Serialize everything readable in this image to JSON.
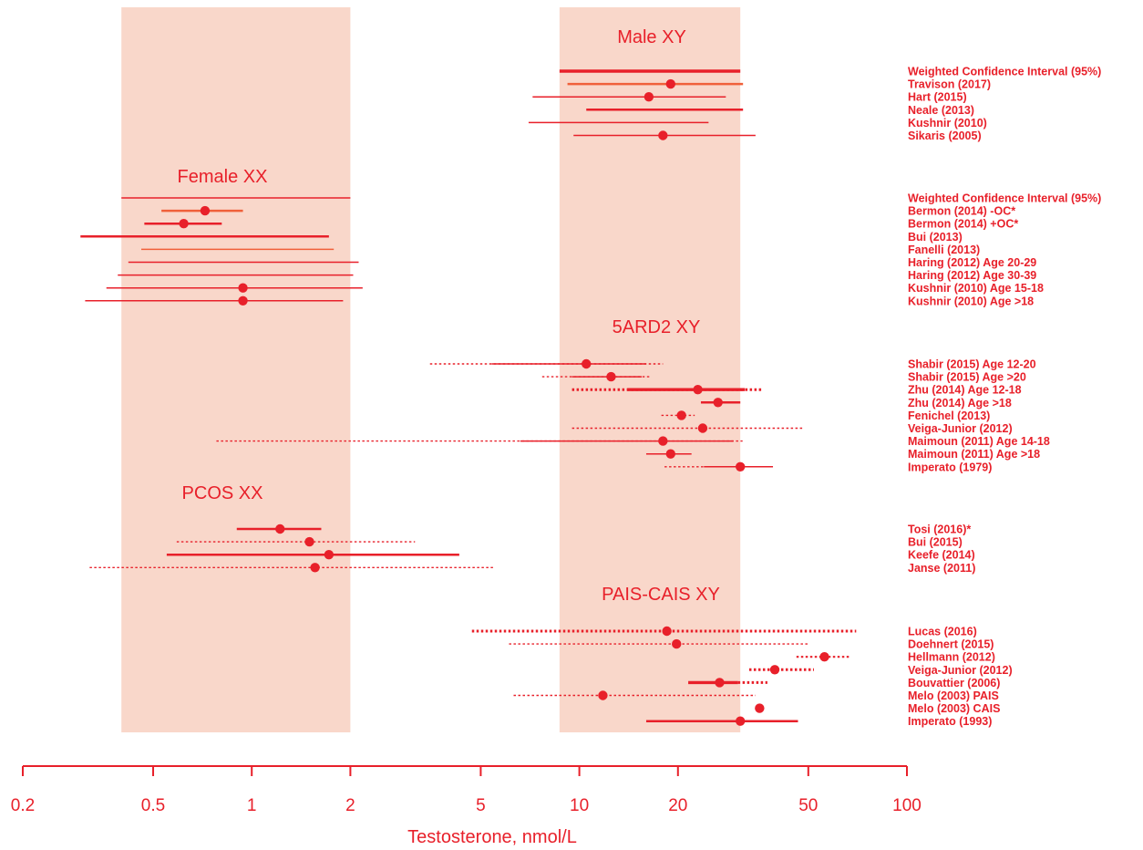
{
  "colors": {
    "accent": "#e8202a",
    "ref_band": "#f9d7ca",
    "light_line": "#f0603a"
  },
  "chart_data": {
    "type": "forest",
    "xlabel": "Testosterone, nmol/L",
    "x_scale": "log",
    "xlim": [
      0.2,
      100
    ],
    "x_ticks": [
      0.2,
      0.5,
      1,
      2,
      5,
      10,
      20,
      50,
      100
    ],
    "x_tick_labels": [
      "0.2",
      "0.5",
      "1",
      "2",
      "5",
      "10",
      "20",
      "50",
      "100"
    ],
    "reference_bands": [
      {
        "group": "Female XX",
        "x_min": 0.4,
        "x_max": 2.0
      },
      {
        "group": "Male XY",
        "x_min": 8.7,
        "x_max": 31
      }
    ],
    "groups": [
      {
        "label": "Male XY",
        "rows": [
          {
            "label": "Weighted Confidence Interval (95%)",
            "ci": [
              8.7,
              31
            ],
            "style": "bold",
            "color": "accent"
          },
          {
            "label": "Travison (2017)",
            "point": 19.0,
            "ci": [
              9.2,
              31.6
            ],
            "style": "medium",
            "color": "light"
          },
          {
            "label": "Hart (2015)",
            "point": 16.3,
            "ci": [
              7.2,
              28.0
            ],
            "style": "thin",
            "color": "accent"
          },
          {
            "label": "Neale (2013)",
            "ci": [
              10.5,
              31.6
            ],
            "style": "medium",
            "color": "accent"
          },
          {
            "label": "Kushnir (2010)",
            "ci": [
              7.0,
              24.8
            ],
            "style": "thin",
            "color": "accent"
          },
          {
            "label": "Sikaris (2005)",
            "point": 18.0,
            "ci": [
              9.6,
              34.5
            ],
            "style": "thin",
            "color": "accent"
          }
        ]
      },
      {
        "label": "Female XX",
        "rows": [
          {
            "label": "Weighted Confidence Interval (95%)",
            "ci": [
              0.4,
              2.0
            ],
            "style": "thin",
            "color": "accent"
          },
          {
            "label": "Bermon (2014) -OC*",
            "point": 0.72,
            "ci": [
              0.53,
              0.94
            ],
            "style": "medium",
            "color": "light"
          },
          {
            "label": "Bermon (2014) +OC*",
            "point": 0.62,
            "ci": [
              0.47,
              0.81
            ],
            "style": "medium",
            "color": "accent"
          },
          {
            "label": "Bui (2013)",
            "ci": [
              0.3,
              1.72
            ],
            "style": "medium",
            "color": "accent"
          },
          {
            "label": "Fanelli (2013)",
            "ci": [
              0.46,
              1.78
            ],
            "style": "thin",
            "color": "light"
          },
          {
            "label": "Haring (2012) Age 20-29",
            "ci": [
              0.42,
              2.12
            ],
            "style": "thin",
            "color": "accent"
          },
          {
            "label": "Haring (2012) Age 30-39",
            "ci": [
              0.39,
              2.04
            ],
            "style": "thin",
            "color": "accent"
          },
          {
            "label": "Kushnir (2010) Age 15-18",
            "point": 0.94,
            "ci": [
              0.36,
              2.18
            ],
            "style": "thin",
            "color": "accent"
          },
          {
            "label": "Kushnir (2010) Age >18",
            "point": 0.94,
            "ci": [
              0.31,
              1.9
            ],
            "style": "thin",
            "color": "accent"
          }
        ]
      },
      {
        "label": "5ARD2 XY",
        "rows": [
          {
            "label": "Shabir (2015) Age 12-20",
            "point": 10.5,
            "ci": [
              5.4,
              16.0
            ],
            "dotted": [
              3.5,
              18.0
            ],
            "style": "thin",
            "color": "accent"
          },
          {
            "label": "Shabir (2015) Age >20",
            "point": 12.5,
            "ci": [
              9.5,
              15.5
            ],
            "dotted": [
              7.7,
              16.5
            ],
            "style": "thin",
            "color": "accent"
          },
          {
            "label": "Zhu (2014) Age 12-18",
            "point": 23.0,
            "ci": [
              14.0,
              32.0
            ],
            "dotted": [
              9.5,
              36.0
            ],
            "style": "bold",
            "color": "accent"
          },
          {
            "label": "Zhu (2014) Age >18",
            "point": 26.5,
            "ci": [
              23.5,
              31.0
            ],
            "style": "medium",
            "color": "accent"
          },
          {
            "label": "Fenichel (2013)",
            "point": 20.5,
            "dotted": [
              17.8,
              22.5
            ],
            "style": "thin",
            "color": "accent"
          },
          {
            "label": "Veiga-Junior (2012)",
            "point": 23.8,
            "dotted": [
              9.5,
              48.0
            ],
            "style": "thin",
            "color": "accent"
          },
          {
            "label": "Maimoun (2011) Age 14-18",
            "point": 18.0,
            "ci": [
              6.6,
              29.5
            ],
            "dotted": [
              0.78,
              31.5
            ],
            "style": "thin",
            "color": "accent"
          },
          {
            "label": "Maimoun (2011) Age >18",
            "point": 19.0,
            "ci": [
              16.0,
              22.0
            ],
            "style": "thin",
            "color": "accent"
          },
          {
            "label": "Imperato (1979)",
            "point": 31.0,
            "ci": [
              24.0,
              39.0
            ],
            "dotted": [
              18.2,
              24.0
            ],
            "style": "thin",
            "color": "accent"
          }
        ]
      },
      {
        "label": "PCOS XX",
        "rows": [
          {
            "label": "Tosi (2016)*",
            "point": 1.22,
            "ci": [
              0.9,
              1.63
            ],
            "style": "medium",
            "color": "accent"
          },
          {
            "label": "Bui (2015)",
            "point": 1.5,
            "dotted": [
              0.59,
              3.15
            ],
            "style": "thin",
            "color": "accent"
          },
          {
            "label": "Keefe (2014)",
            "point": 1.72,
            "ci": [
              0.55,
              4.3
            ],
            "style": "medium",
            "color": "accent"
          },
          {
            "label": "Janse (2011)",
            "point": 1.56,
            "dotted": [
              0.32,
              5.5
            ],
            "style": "thin",
            "color": "accent"
          }
        ]
      },
      {
        "label": "PAIS-CAIS XY",
        "rows": [
          {
            "label": "Lucas (2016)",
            "point": 18.5,
            "dotted": [
              4.7,
              70.0
            ],
            "style": "bold",
            "color": "accent"
          },
          {
            "label": "Doehnert (2015)",
            "point": 19.8,
            "dotted": [
              6.1,
              50.0
            ],
            "style": "thin",
            "color": "accent"
          },
          {
            "label": "Hellmann (2012)",
            "point": 56.0,
            "dotted": [
              46.0,
              67.0
            ],
            "style": "medium",
            "color": "accent"
          },
          {
            "label": "Veiga-Junior (2012)",
            "point": 39.5,
            "dotted": [
              33.0,
              52.0
            ],
            "style": "bold",
            "color": "accent"
          },
          {
            "label": "Bouvattier (2006)",
            "point": 26.8,
            "ci": [
              21.5,
              30.5
            ],
            "dotted": [
              30.5,
              37.5
            ],
            "style": "bold",
            "color": "accent"
          },
          {
            "label": "Melo (2003) PAIS",
            "point": 11.8,
            "dotted": [
              6.3,
              34.5
            ],
            "style": "thin",
            "color": "accent"
          },
          {
            "label": "Melo (2003) CAIS",
            "point": 35.5,
            "style": "thin",
            "color": "accent"
          },
          {
            "label": "Imperato (1993)",
            "point": 31.0,
            "ci": [
              16.0,
              46.5
            ],
            "style": "medium",
            "color": "accent"
          }
        ]
      }
    ]
  }
}
